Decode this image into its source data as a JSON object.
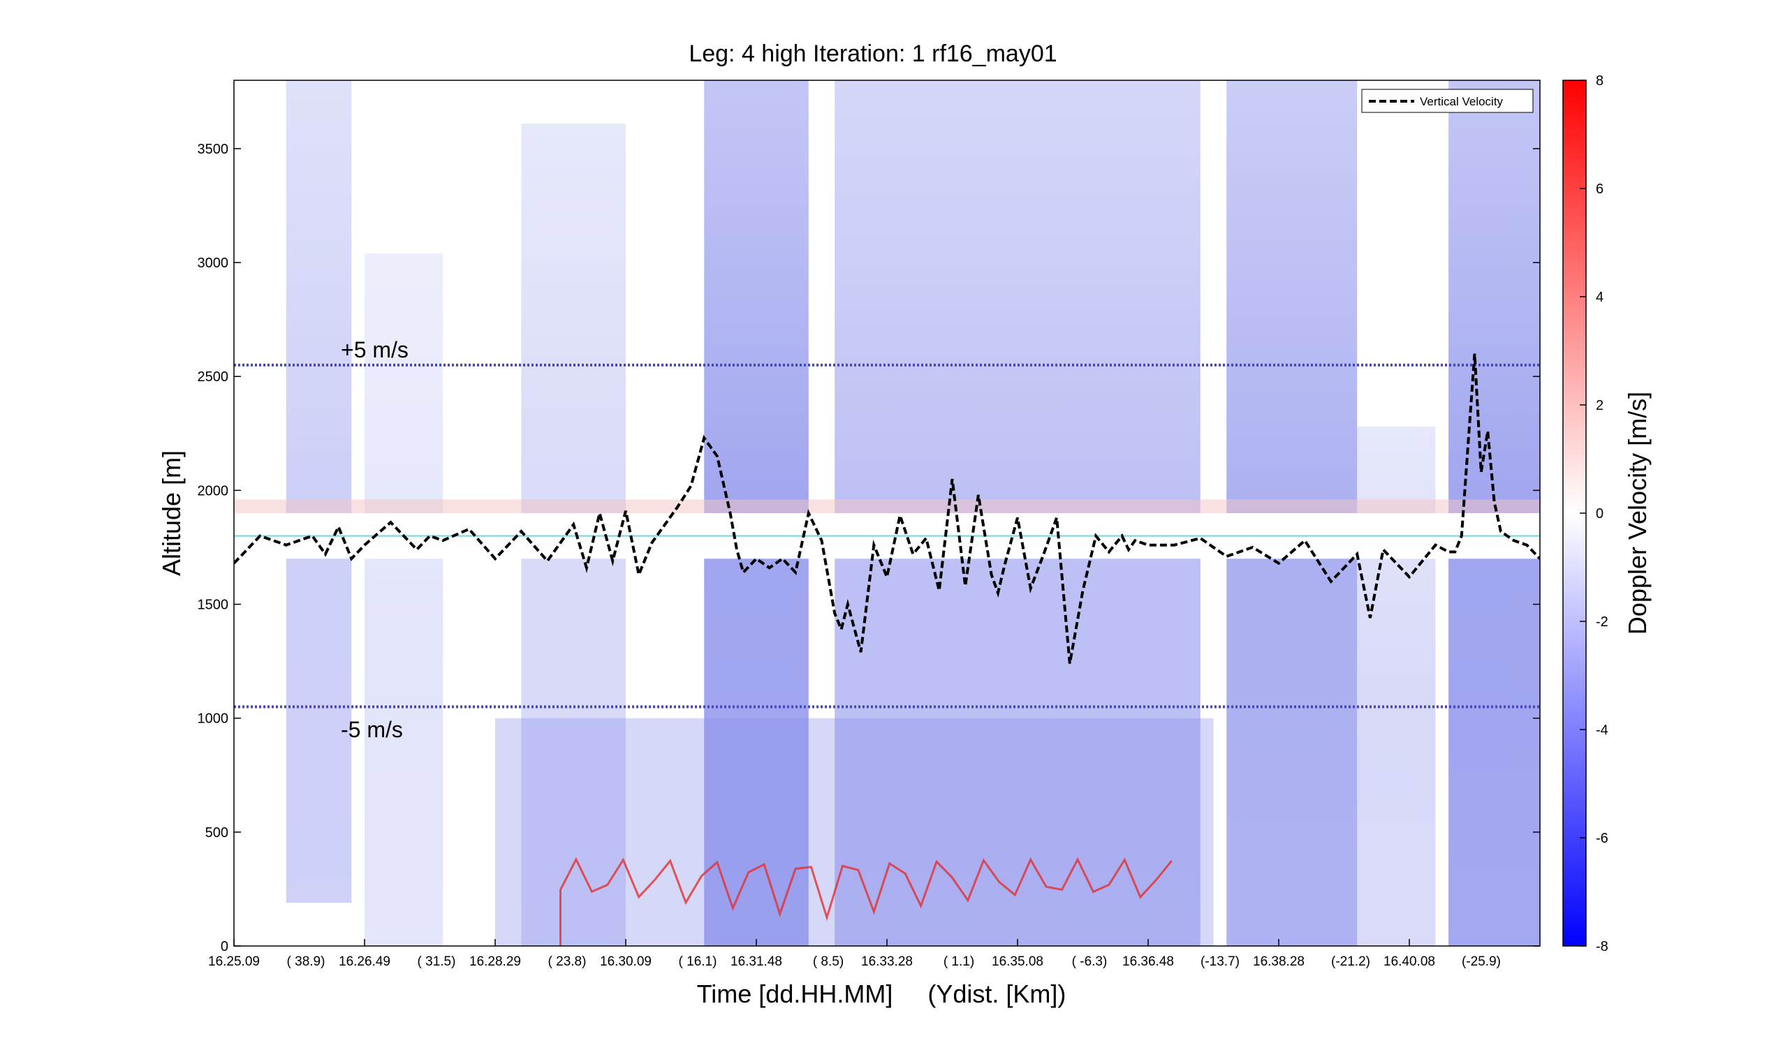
{
  "chart_data": {
    "type": "heatmap",
    "title": "Leg: 4 high Iteration: 1  rf16_may01",
    "xlabel": "Time [dd.HH.MM]     (Ydist. [Km])",
    "ylabel": "Altitude [m]",
    "ylim": [
      0,
      3800
    ],
    "yticks": [
      0,
      500,
      1000,
      1500,
      2000,
      2500,
      3000,
      3500
    ],
    "xticks": [
      {
        "time": "16.25.09",
        "dist": "( 38.9)"
      },
      {
        "time": "16.26.49",
        "dist": "( 31.5)"
      },
      {
        "time": "16.28.29",
        "dist": "( 23.8)"
      },
      {
        "time": "16.30.09",
        "dist": "( 16.1)"
      },
      {
        "time": "16.31.48",
        "dist": "(  8.5)"
      },
      {
        "time": "16.33.28",
        "dist": "(  1.1)"
      },
      {
        "time": "16.35.08",
        "dist": "( -6.3)"
      },
      {
        "time": "16.36.48",
        "dist": "(-13.7)"
      },
      {
        "time": "16.38.28",
        "dist": "(-21.2)"
      },
      {
        "time": "16.40.08",
        "dist": "(-25.9)"
      }
    ],
    "colorbar": {
      "label": "Doppler Velocity [m/s]",
      "range": [
        -8,
        8
      ],
      "ticks": [
        -8,
        -6,
        -4,
        -2,
        0,
        2,
        4,
        6,
        8
      ],
      "colors": {
        "low": "#0000ff",
        "mid": "#ffffff",
        "high": "#ff0000"
      }
    },
    "legend": {
      "label": "Vertical Velocity",
      "position": "top-right",
      "style": "black dashed"
    },
    "reference_lines": [
      {
        "label": "+5 m/s",
        "y": 2550,
        "color": "#4444cc",
        "style": "dotted"
      },
      {
        "label": "-5 m/s",
        "y": 1050,
        "color": "#4444cc",
        "style": "dotted"
      },
      {
        "label": "",
        "y": 1800,
        "color": "#66dddd",
        "style": "solid"
      }
    ],
    "flight_gap": {
      "y_range": [
        1700,
        1900
      ]
    },
    "vertical_velocity_series": {
      "name": "Vertical Velocity",
      "x_fraction": [
        0,
        0.02,
        0.04,
        0.06,
        0.07,
        0.08,
        0.09,
        0.1,
        0.12,
        0.14,
        0.15,
        0.16,
        0.18,
        0.2,
        0.22,
        0.24,
        0.26,
        0.27,
        0.28,
        0.29,
        0.3,
        0.31,
        0.32,
        0.33,
        0.34,
        0.35,
        0.36,
        0.37,
        0.38,
        0.385,
        0.39,
        0.4,
        0.41,
        0.42,
        0.43,
        0.44,
        0.45,
        0.46,
        0.465,
        0.47,
        0.48,
        0.49,
        0.5,
        0.51,
        0.52,
        0.53,
        0.54,
        0.55,
        0.56,
        0.57,
        0.58,
        0.585,
        0.59,
        0.6,
        0.61,
        0.62,
        0.63,
        0.64,
        0.65,
        0.66,
        0.67,
        0.68,
        0.685,
        0.69,
        0.7,
        0.72,
        0.74,
        0.76,
        0.78,
        0.8,
        0.82,
        0.84,
        0.86,
        0.87,
        0.88,
        0.9,
        0.92,
        0.93,
        0.935,
        0.94,
        0.945,
        0.95,
        0.955,
        0.96,
        0.965,
        0.97,
        0.98,
        0.99,
        1.0
      ],
      "altitude_m": [
        1680,
        1800,
        1760,
        1800,
        1720,
        1840,
        1700,
        1760,
        1860,
        1740,
        1800,
        1780,
        1830,
        1700,
        1820,
        1690,
        1850,
        1660,
        1900,
        1690,
        1910,
        1630,
        1770,
        1850,
        1930,
        2020,
        2230,
        2150,
        1900,
        1740,
        1640,
        1700,
        1660,
        1700,
        1640,
        1900,
        1780,
        1460,
        1390,
        1500,
        1290,
        1760,
        1620,
        1890,
        1720,
        1790,
        1560,
        2050,
        1580,
        1980,
        1630,
        1550,
        1670,
        1880,
        1570,
        1720,
        1880,
        1240,
        1560,
        1800,
        1730,
        1800,
        1740,
        1780,
        1760,
        1760,
        1790,
        1710,
        1750,
        1680,
        1780,
        1600,
        1720,
        1440,
        1740,
        1620,
        1760,
        1730,
        1730,
        1800,
        2200,
        2600,
        2080,
        2260,
        1950,
        1820,
        1780,
        1760,
        1700
      ]
    }
  }
}
